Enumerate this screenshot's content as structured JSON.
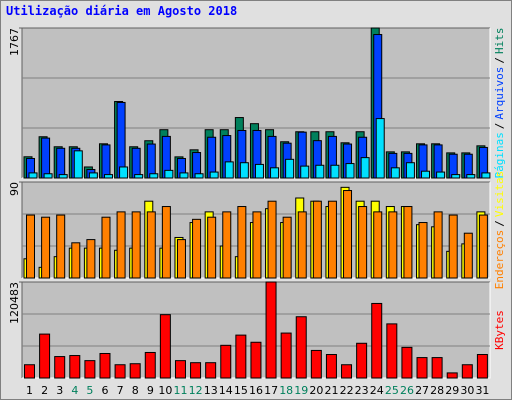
{
  "chart_data": [
    {
      "type": "bar",
      "title": "Utilização diária em Agosto 2018",
      "legend_separator": "/",
      "ylim": [
        0,
        1767
      ],
      "yticks": [
        1767
      ],
      "series": [
        {
          "name": "Hits",
          "color": "#00805c",
          "values": [
            250,
            486,
            368,
            368,
            130,
            403,
            901,
            368,
            439,
            569,
            249,
            332,
            569,
            569,
            712,
            640,
            569,
            427,
            545,
            545,
            545,
            415,
            545,
            1767,
            308,
            308,
            403,
            403,
            296,
            296,
            379
          ]
        },
        {
          "name": "Arquivos",
          "color": "#0040ff",
          "values": [
            230,
            470,
            350,
            350,
            100,
            390,
            890,
            350,
            400,
            490,
            230,
            300,
            480,
            500,
            560,
            560,
            490,
            410,
            540,
            440,
            490,
            400,
            480,
            1690,
            290,
            290,
            390,
            390,
            280,
            280,
            360
          ]
        },
        {
          "name": "Páginas",
          "color": "#00e0ff",
          "values": [
            60,
            50,
            40,
            320,
            60,
            40,
            130,
            40,
            50,
            90,
            60,
            50,
            70,
            190,
            180,
            160,
            120,
            220,
            140,
            150,
            150,
            170,
            240,
            700,
            120,
            180,
            80,
            70,
            40,
            40,
            60
          ]
        }
      ]
    },
    {
      "type": "bar",
      "legend_separator": "/",
      "ylim": [
        0,
        90
      ],
      "yticks": [
        90
      ],
      "series": [
        {
          "name": "Visitas",
          "color": "#ffff00",
          "values": [
            18,
            10,
            20,
            28,
            28,
            28,
            26,
            28,
            72,
            28,
            38,
            52,
            62,
            30,
            20,
            52,
            65,
            52,
            75,
            72,
            67,
            85,
            72,
            72,
            67,
            67,
            50,
            48,
            25,
            32,
            62
          ]
        },
        {
          "name": "Endereços",
          "color": "#ff8000",
          "values": [
            59,
            57,
            59,
            33,
            36,
            57,
            62,
            62,
            62,
            67,
            36,
            55,
            57,
            62,
            67,
            62,
            72,
            57,
            62,
            72,
            72,
            82,
            67,
            62,
            62,
            67,
            52,
            62,
            59,
            42,
            59
          ]
        }
      ]
    },
    {
      "type": "bar",
      "ylim": [
        0,
        120483
      ],
      "yticks": [
        120483
      ],
      "categories": [
        "1",
        "2",
        "3",
        "4",
        "5",
        "6",
        "7",
        "8",
        "9",
        "10",
        "11",
        "12",
        "13",
        "14",
        "15",
        "16",
        "17",
        "18",
        "19",
        "20",
        "21",
        "22",
        "23",
        "24",
        "25",
        "26",
        "27",
        "28",
        "29",
        "30",
        "31"
      ],
      "category_colors": [
        "#000000",
        "#000000",
        "#000000",
        "#00805c",
        "#00805c",
        "#000000",
        "#000000",
        "#000000",
        "#000000",
        "#000000",
        "#00805c",
        "#00805c",
        "#000000",
        "#000000",
        "#000000",
        "#000000",
        "#000000",
        "#00805c",
        "#00805c",
        "#000000",
        "#000000",
        "#000000",
        "#000000",
        "#000000",
        "#00805c",
        "#00805c",
        "#000000",
        "#000000",
        "#000000",
        "#000000",
        "#000000"
      ],
      "series": [
        {
          "name": "KBytes",
          "color": "#ff0000",
          "values": [
            16660,
            55110,
            26900,
            28200,
            21800,
            30760,
            16660,
            17940,
            32040,
            79470,
            21800,
            19230,
            19230,
            41020,
            53830,
            44860,
            120483,
            56400,
            76900,
            34600,
            29480,
            16660,
            43580,
            93560,
            67930,
            38450,
            25630,
            25630,
            6410,
            16660,
            29480
          ]
        }
      ]
    }
  ]
}
